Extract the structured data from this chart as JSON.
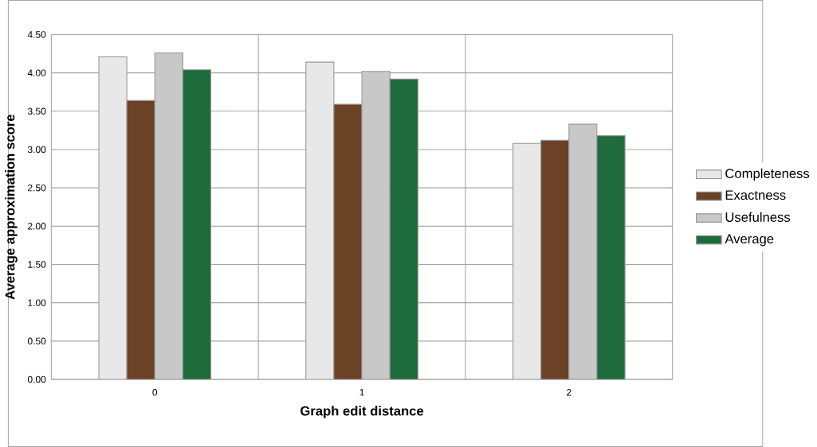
{
  "chart_data": {
    "type": "bar",
    "xlabel": "Graph edit distance",
    "ylabel": "Average approximation score",
    "categories": [
      "0",
      "1",
      "2"
    ],
    "series": [
      {
        "name": "Completeness",
        "color": "#e8e8e8",
        "values": [
          4.21,
          4.14,
          3.08
        ]
      },
      {
        "name": "Exactness",
        "color": "#6b4226",
        "values": [
          3.64,
          3.59,
          3.12
        ]
      },
      {
        "name": "Usefulness",
        "color": "#c8c8c8",
        "values": [
          4.26,
          4.02,
          3.33
        ]
      },
      {
        "name": "Average",
        "color": "#1e6b3c",
        "values": [
          4.04,
          3.92,
          3.18
        ]
      }
    ],
    "ylim": [
      0,
      4.5
    ],
    "yticks": [
      {
        "value": 0,
        "label": "0.00"
      },
      {
        "value": 0.5,
        "label": "0.50"
      },
      {
        "value": 1,
        "label": "1.00"
      },
      {
        "value": 1.5,
        "label": "1.50"
      },
      {
        "value": 2,
        "label": "2.00"
      },
      {
        "value": 2.5,
        "label": "2.50"
      },
      {
        "value": 3,
        "label": "3.00"
      },
      {
        "value": 3.5,
        "label": "3.50"
      },
      {
        "value": 4,
        "label": "4.00"
      },
      {
        "value": 4.5,
        "label": "4.50"
      }
    ],
    "grid": true,
    "legend": "right"
  }
}
